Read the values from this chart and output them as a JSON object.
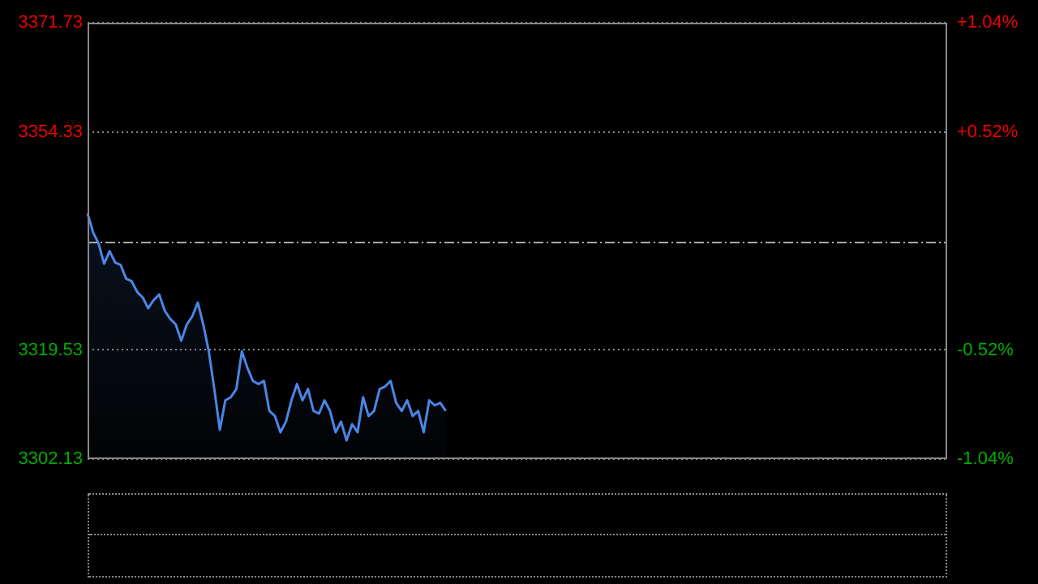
{
  "chart_data": {
    "type": "area",
    "categories": [
      null,
      null,
      null,
      null,
      null,
      null,
      null,
      null,
      null,
      null,
      null,
      null,
      null,
      null,
      null,
      null,
      null,
      null,
      null,
      null,
      null,
      null,
      null,
      null,
      null,
      null,
      null,
      null,
      null,
      null,
      null,
      null,
      null,
      null,
      null,
      null,
      null,
      null,
      null,
      null,
      null,
      null,
      null,
      null,
      null,
      null,
      null,
      null,
      null,
      null,
      null,
      null,
      null,
      null,
      null,
      null,
      null,
      null,
      null,
      null,
      null,
      null,
      null,
      null,
      null,
      null,
      null,
      null,
      null,
      null,
      null,
      null,
      null,
      null,
      null,
      null,
      null,
      null,
      null,
      null,
      null,
      null,
      null,
      null,
      null,
      null,
      null,
      null,
      null,
      null,
      null,
      null,
      null,
      null,
      null,
      null,
      null,
      null,
      null,
      null,
      null,
      null,
      null,
      null,
      null,
      null,
      null,
      null,
      null,
      null,
      null,
      null,
      null,
      null,
      null,
      null,
      null,
      null,
      null,
      null,
      null,
      null,
      null,
      null,
      null,
      null,
      null,
      null,
      null,
      null,
      null,
      null,
      null,
      null,
      null,
      null,
      null,
      null,
      null,
      null,
      null,
      null,
      null,
      null,
      null,
      null,
      null,
      null,
      null,
      null,
      null,
      null,
      null,
      null,
      null,
      null,
      null
    ],
    "series": [
      {
        "color": "#4a86e8",
        "values": [
          3341.3,
          3338.3,
          3336.5,
          3333.3,
          3335.3,
          3333.5,
          3333.1,
          3330.9,
          3330.5,
          3328.8,
          3327.9,
          3326.2,
          3327.5,
          3328.4,
          3325.8,
          3324.5,
          3323.6,
          3321.0,
          3323.6,
          3324.9,
          3327.1,
          3323.6,
          3319.3,
          3313.3,
          3306.8,
          3311.5,
          3312.0,
          3313.3,
          3319.3,
          3316.7,
          3314.6,
          3314.1,
          3314.6,
          3309.8,
          3309.0,
          3306.4,
          3308.1,
          3311.5,
          3314.1,
          3311.5,
          3313.3,
          3309.8,
          3309.4,
          3311.5,
          3309.8,
          3306.4,
          3308.1,
          3305.1,
          3307.7,
          3306.4,
          3312.0,
          3309.0,
          3309.8,
          3313.3,
          3313.7,
          3314.6,
          3311.1,
          3309.8,
          3311.5,
          3309.0,
          3309.8,
          3306.4,
          3311.5,
          3310.7,
          3311.1,
          3309.8,
          null,
          null,
          null,
          null,
          null,
          null,
          null,
          null,
          null,
          null,
          null,
          null,
          null,
          null,
          null,
          null,
          null,
          null,
          null,
          null,
          null,
          null,
          null,
          null,
          null,
          null,
          null,
          null,
          null,
          null,
          null,
          null,
          null,
          null,
          null,
          null,
          null,
          null,
          null,
          null,
          null,
          null,
          null,
          null,
          null,
          null,
          null,
          null,
          null,
          null,
          null,
          null,
          null,
          null,
          null,
          null,
          null,
          null,
          null,
          null,
          null,
          null,
          null,
          null,
          null,
          null,
          null,
          null,
          null,
          null,
          null,
          null,
          null,
          null,
          null,
          null,
          null,
          null,
          null,
          null,
          null,
          null,
          null,
          null,
          null,
          null,
          null,
          null,
          null,
          null,
          null
        ]
      }
    ],
    "ylim": [
      3302.13,
      3371.73
    ],
    "yticks": [
      3302.13,
      3319.53,
      3354.33,
      3371.73
    ],
    "y2lim": [
      -1.04,
      1.04
    ],
    "y2ticks": [
      {
        "value": -1.04,
        "label": "-1.04%"
      },
      {
        "value": -0.52,
        "label": "-0.52%"
      },
      {
        "value": 0.52,
        "label": "+0.52%"
      },
      {
        "value": 1.04,
        "label": "+1.04%"
      }
    ],
    "ref_lines": [
      {
        "axis": "y",
        "value": 3336.93,
        "label": null,
        "line_style": "dashdot"
      }
    ],
    "grid": "y",
    "marker": "none",
    "line_style": "solid",
    "legend": false
  }
}
